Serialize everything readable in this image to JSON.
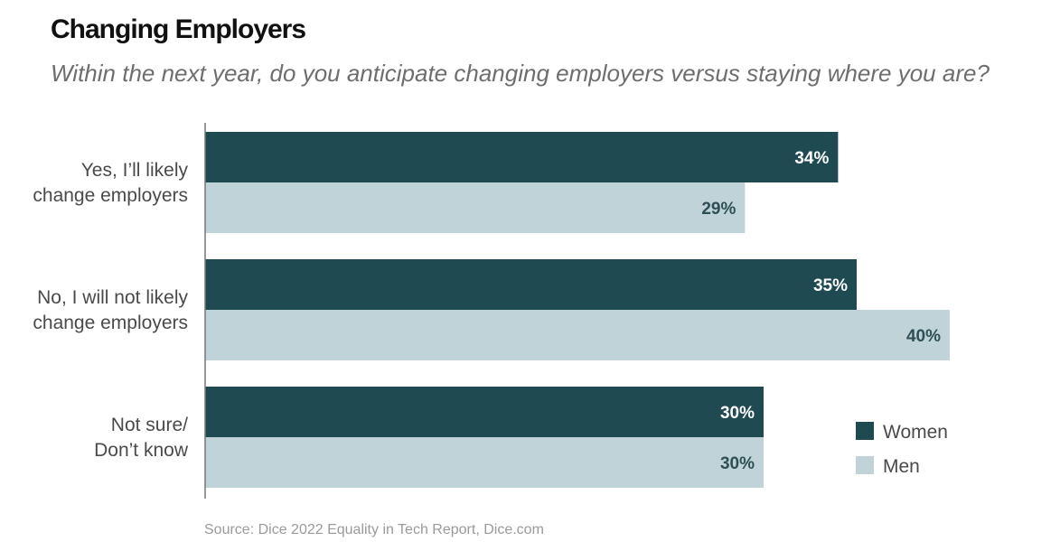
{
  "header": {
    "title": "Changing Employers",
    "subtitle": "Within the next year, do you anticipate changing employers versus staying where you are?"
  },
  "footer": {
    "source": "Source: Dice 2022 Equality in Tech Report, Dice.com"
  },
  "colors": {
    "women": "#1f4a52",
    "men": "#c0d3d8",
    "women_label": "#ffffff",
    "men_label": "#2e4f56"
  },
  "chart_data": {
    "type": "bar",
    "orientation": "horizontal",
    "categories": [
      [
        "Yes, I’ll likely",
        "change employers"
      ],
      [
        "No, I will not likely",
        "change employers"
      ],
      [
        "Not sure/",
        "Don’t know"
      ]
    ],
    "series": [
      {
        "name": "Women",
        "values": [
          34,
          35,
          30
        ],
        "labels": [
          "34%",
          "35%",
          "30%"
        ]
      },
      {
        "name": "Men",
        "values": [
          29,
          40,
          30
        ],
        "labels": [
          "29%",
          "40%",
          "30%"
        ]
      }
    ],
    "xlim": [
      0,
      40
    ],
    "legend_position": "bottom-right",
    "grid": false
  }
}
